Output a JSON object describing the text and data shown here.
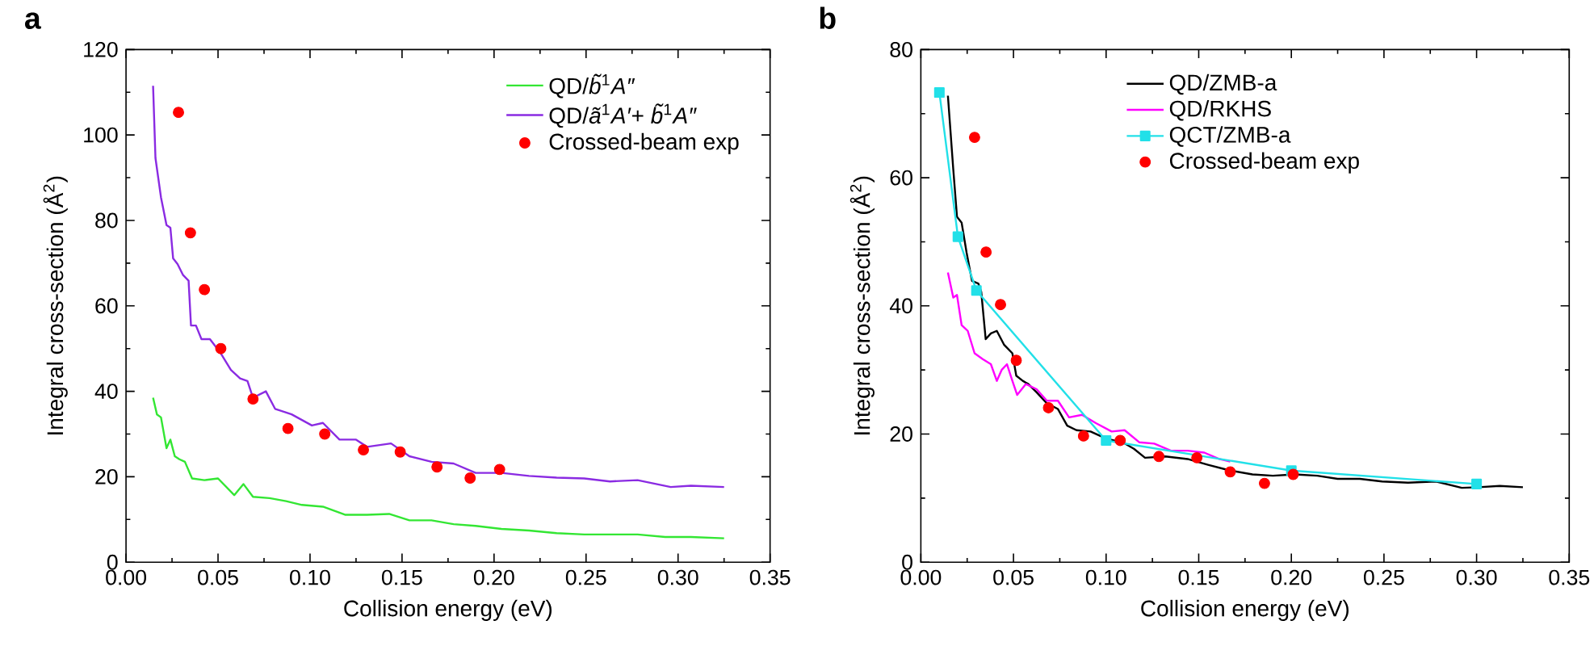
{
  "chart_data": [
    {
      "type": "line",
      "title": "a",
      "xlabel": "Collision energy (eV)",
      "ylabel": "Integral cross-section (Å$^{2}$)",
      "xlim": [
        0,
        0.35
      ],
      "xticks": [
        {
          "value": 0,
          "label": "0.00"
        },
        {
          "value": 0.05,
          "label": "0.05"
        },
        {
          "value": 0.1,
          "label": "0.10"
        },
        {
          "value": 0.15,
          "label": "0.15"
        },
        {
          "value": 0.2,
          "label": "0.20"
        },
        {
          "value": 0.25,
          "label": "0.25"
        },
        {
          "value": 0.3,
          "label": "0.30"
        },
        {
          "value": 0.35,
          "label": "0.35"
        }
      ],
      "ylim": [
        0,
        120
      ],
      "yticks": [
        0,
        20,
        40,
        60,
        80,
        100,
        120
      ],
      "legend": "top right",
      "series": [
        {
          "name": "QD/*b̃*$^{1}$*A″*",
          "color": "#33e633",
          "x": [
            0.0147,
            0.0168,
            0.019,
            0.022,
            0.0241,
            0.0265,
            0.029,
            0.032,
            0.0359,
            0.0426,
            0.05,
            0.0588,
            0.0638,
            0.069,
            0.078,
            0.087,
            0.0956,
            0.107,
            0.119,
            0.131,
            0.143,
            0.154,
            0.166,
            0.178,
            0.19,
            0.204,
            0.219,
            0.234,
            0.249,
            0.263,
            0.278,
            0.293,
            0.307,
            0.325
          ],
          "values": [
            38.5,
            34.6,
            33.9,
            26.7,
            28.7,
            24.8,
            24.1,
            23.5,
            19.6,
            19.2,
            19.6,
            15.7,
            18.3,
            15.3,
            15.0,
            14.3,
            13.4,
            13.0,
            11.1,
            11.1,
            11.3,
            9.8,
            9.8,
            8.9,
            8.5,
            7.8,
            7.4,
            6.8,
            6.5,
            6.5,
            6.5,
            5.9,
            5.9,
            5.6
          ]
        },
        {
          "name": "QD/*ã*$^{1}$*A′*+ *b̃*$^{1}$*A″*",
          "color": "#8a2be2",
          "x": [
            0.0147,
            0.016,
            0.019,
            0.022,
            0.0241,
            0.0256,
            0.028,
            0.031,
            0.034,
            0.0353,
            0.038,
            0.041,
            0.0456,
            0.0515,
            0.057,
            0.062,
            0.066,
            0.069,
            0.076,
            0.081,
            0.09,
            0.101,
            0.107,
            0.116,
            0.125,
            0.131,
            0.144,
            0.154,
            0.166,
            0.178,
            0.19,
            0.204,
            0.219,
            0.234,
            0.249,
            0.263,
            0.278,
            0.296,
            0.307,
            0.325
          ],
          "values": [
            111.5,
            94.6,
            85.4,
            78.9,
            78.3,
            71.1,
            69.8,
            67.2,
            65.9,
            55.4,
            55.4,
            52.2,
            52.2,
            48.9,
            45.0,
            43.0,
            42.4,
            38.5,
            40.0,
            35.9,
            34.6,
            32.0,
            32.6,
            28.7,
            28.7,
            27.0,
            27.8,
            24.8,
            23.5,
            23.1,
            20.9,
            20.9,
            20.2,
            19.8,
            19.6,
            18.9,
            19.2,
            17.6,
            17.9,
            17.6
          ]
        },
        {
          "type": "scatter",
          "name": "Crossed-beam exp",
          "color": "#ff0000",
          "marker": "circle",
          "x": [
            0.0285,
            0.035,
            0.0426,
            0.0515,
            0.069,
            0.088,
            0.108,
            0.129,
            0.149,
            0.169,
            0.187,
            0.203
          ],
          "values": [
            105.3,
            77.1,
            63.8,
            50.0,
            38.2,
            31.3,
            30.0,
            26.3,
            25.8,
            22.3,
            19.7,
            21.7
          ]
        }
      ]
    },
    {
      "type": "line",
      "title": "b",
      "xlabel": "Collision energy (eV)",
      "ylabel": "Integral cross-section (Å$^{2}$)",
      "xlim": [
        0,
        0.35
      ],
      "xticks": [
        {
          "value": 0,
          "label": "0.00"
        },
        {
          "value": 0.05,
          "label": "0.05"
        },
        {
          "value": 0.1,
          "label": "0.10"
        },
        {
          "value": 0.15,
          "label": "0.15"
        },
        {
          "value": 0.2,
          "label": "0.20"
        },
        {
          "value": 0.25,
          "label": "0.25"
        },
        {
          "value": 0.3,
          "label": "0.30"
        },
        {
          "value": 0.35,
          "label": "0.35"
        }
      ],
      "ylim": [
        0,
        80
      ],
      "yticks": [
        0,
        20,
        40,
        60,
        80
      ],
      "legend": "top",
      "series": [
        {
          "name": "QD/ZMB-a",
          "color": "#000000",
          "x": [
            0.0146,
            0.0175,
            0.0195,
            0.022,
            0.0247,
            0.0276,
            0.031,
            0.0326,
            0.035,
            0.0378,
            0.041,
            0.045,
            0.0494,
            0.0515,
            0.055,
            0.058,
            0.0625,
            0.068,
            0.074,
            0.079,
            0.084,
            0.0916,
            0.1,
            0.109,
            0.115,
            0.121,
            0.132,
            0.144,
            0.155,
            0.167,
            0.179,
            0.19,
            0.202,
            0.214,
            0.225,
            0.237,
            0.249,
            0.263,
            0.278,
            0.292,
            0.301,
            0.3125,
            0.325
          ],
          "values": [
            72.8,
            61.3,
            53.9,
            53.0,
            48.3,
            43.9,
            43.5,
            42.2,
            34.8,
            35.7,
            36.1,
            33.9,
            32.6,
            29.1,
            28.3,
            27.8,
            26.5,
            24.8,
            23.9,
            21.3,
            20.6,
            20.4,
            19.3,
            18.7,
            17.7,
            16.3,
            16.5,
            16.1,
            15.2,
            14.3,
            13.7,
            13.5,
            13.7,
            13.5,
            13.0,
            13.0,
            12.6,
            12.4,
            12.6,
            11.6,
            11.7,
            11.9,
            11.7
          ]
        },
        {
          "name": "QD/RKHS",
          "color": "#ff00ff",
          "x": [
            0.0146,
            0.0175,
            0.0195,
            0.022,
            0.0253,
            0.029,
            0.0334,
            0.0378,
            0.041,
            0.0436,
            0.0465,
            0.0494,
            0.052,
            0.0567,
            0.0625,
            0.068,
            0.074,
            0.08,
            0.087,
            0.0945,
            0.103,
            0.11,
            0.118,
            0.126,
            0.135,
            0.144,
            0.153,
            0.161,
            0.167
          ],
          "values": [
            45.2,
            41.3,
            41.7,
            37.0,
            36.1,
            32.6,
            31.7,
            30.9,
            28.3,
            30.0,
            30.9,
            28.3,
            26.1,
            27.8,
            27.0,
            25.2,
            25.2,
            22.6,
            23.0,
            21.7,
            20.4,
            20.6,
            18.7,
            18.5,
            17.4,
            17.4,
            17.1,
            16.1,
            15.7
          ]
        },
        {
          "name": "QCT/ZMB-a",
          "color": "#22e0e8",
          "marker": "square",
          "x": [
            0.01,
            0.02,
            0.03,
            0.05,
            0.1,
            0.2,
            0.3
          ],
          "values": [
            73.3,
            50.8,
            42.4,
            null,
            19.0,
            14.3,
            12.2
          ]
        },
        {
          "type": "scatter",
          "name": "Crossed-beam exp",
          "color": "#ff0000",
          "marker": "circle",
          "x": [
            0.029,
            0.0352,
            0.043,
            0.0515,
            0.0689,
            0.0878,
            0.1076,
            0.1285,
            0.149,
            0.167,
            0.1855,
            0.201
          ],
          "values": [
            66.3,
            48.4,
            40.2,
            31.5,
            24.1,
            19.7,
            19.0,
            16.5,
            16.3,
            14.1,
            12.3,
            13.7
          ]
        }
      ]
    }
  ]
}
